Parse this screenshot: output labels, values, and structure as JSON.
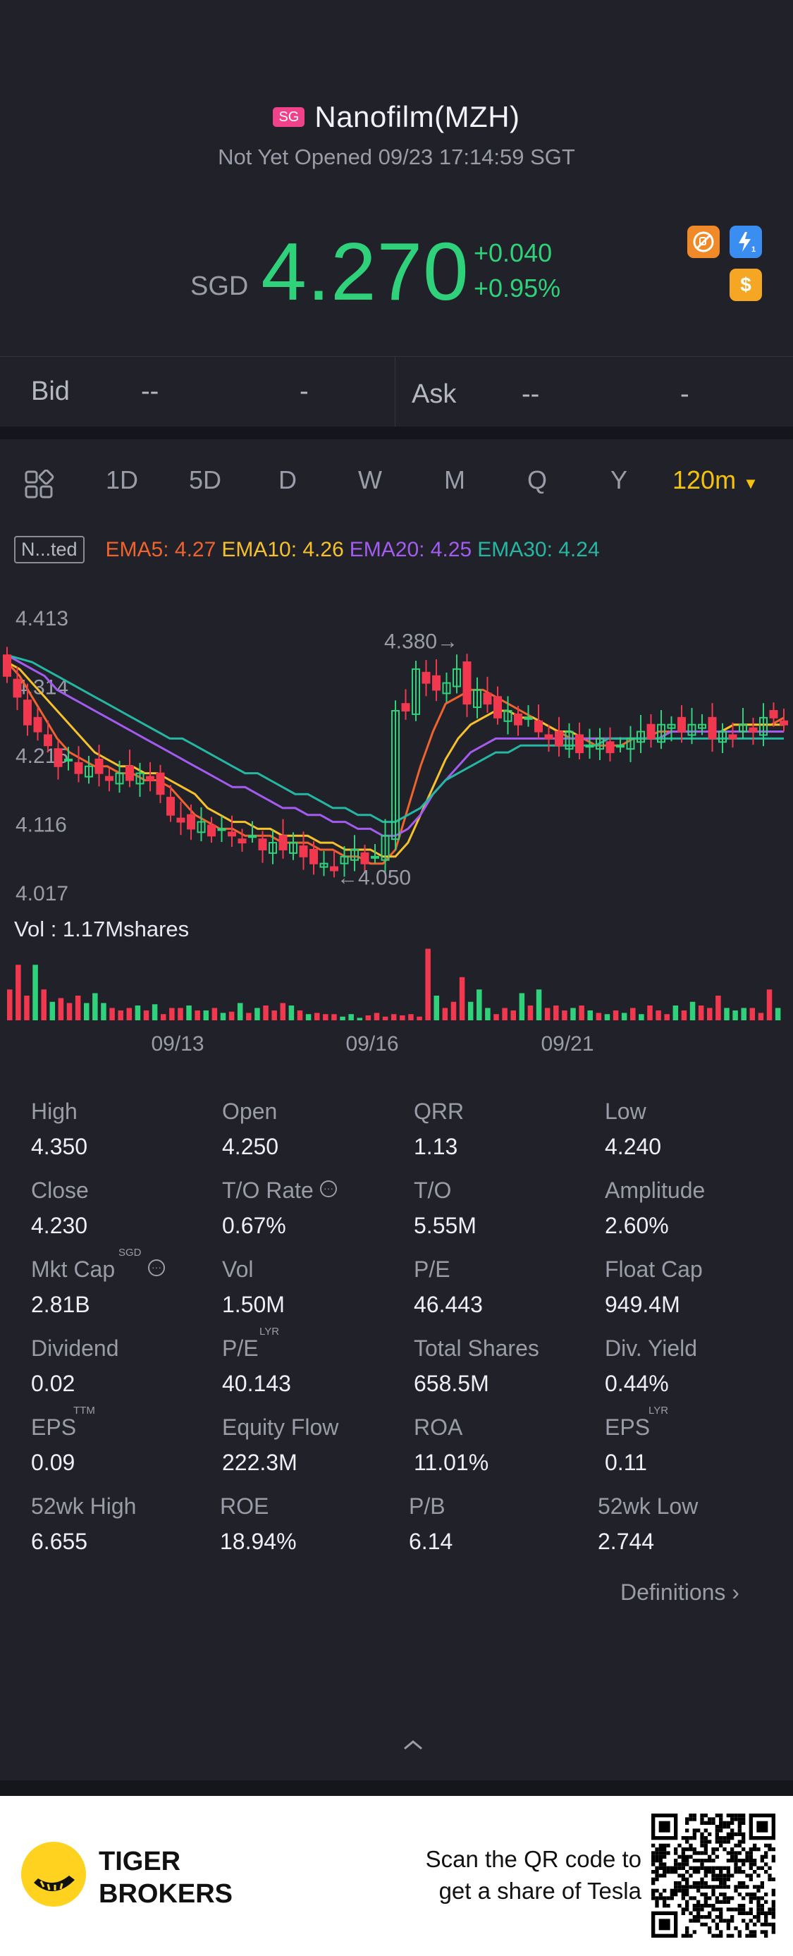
{
  "header": {
    "market_badge": "SG",
    "stock_name": "Nanofilm(MZH)",
    "status": "Not Yet Opened 09/23 17:14:59 SGT",
    "currency": "SGD",
    "price": "4.270",
    "change_abs": "+0.040",
    "change_pct": "+0.95%",
    "icons": [
      "no-short-icon",
      "flash-icon",
      "dollar-icon"
    ]
  },
  "bidask": {
    "bid_label": "Bid",
    "bid_price": "--",
    "bid_size": "-",
    "ask_label": "Ask",
    "ask_price": "--",
    "ask_size": "-"
  },
  "tabs": [
    "1D",
    "5D",
    "D",
    "W",
    "M",
    "Q",
    "Y"
  ],
  "selected_tab": "120m",
  "indicators": {
    "mode_label": "N...ted",
    "ema5": "EMA5: 4.27",
    "ema10": "EMA10: 4.26",
    "ema20": "EMA20: 4.25",
    "ema30": "EMA30: 4.24",
    "colors": {
      "ema5": "#f0632e",
      "ema10": "#f6c12b",
      "ema20": "#a45cf0",
      "ema30": "#26b7a4",
      "up": "#2fd27a",
      "down": "#f2384e"
    }
  },
  "chart_data": {
    "type": "candlestick",
    "y_ticks": [
      "4.413",
      "4.314",
      "4.215",
      "4.116",
      "4.017"
    ],
    "ylim": [
      4.017,
      4.413
    ],
    "x_ticks": [
      "09/13",
      "09/16",
      "09/21"
    ],
    "max_annotation": "4.380",
    "min_annotation": "4.050",
    "close_series": [
      4.33,
      4.3,
      4.26,
      4.25,
      4.23,
      4.2,
      4.21,
      4.19,
      4.2,
      4.19,
      4.18,
      4.19,
      4.18,
      4.19,
      4.18,
      4.16,
      4.13,
      4.12,
      4.11,
      4.12,
      4.1,
      4.11,
      4.1,
      4.09,
      4.1,
      4.08,
      4.09,
      4.08,
      4.09,
      4.07,
      4.06,
      4.06,
      4.05,
      4.07,
      4.08,
      4.06,
      4.07,
      4.1,
      4.28,
      4.28,
      4.34,
      4.32,
      4.31,
      4.32,
      4.34,
      4.29,
      4.31,
      4.29,
      4.27,
      4.28,
      4.26,
      4.27,
      4.25,
      4.24,
      4.23,
      4.25,
      4.22,
      4.23,
      4.24,
      4.22,
      4.23,
      4.24,
      4.25,
      4.24,
      4.26,
      4.26,
      4.25,
      4.26,
      4.26,
      4.24,
      4.25,
      4.24,
      4.26,
      4.25,
      4.27,
      4.27,
      4.26
    ],
    "ema_series": {
      "EMA5": [
        4.35,
        4.33,
        4.3,
        4.27,
        4.24,
        4.22,
        4.21,
        4.2,
        4.2,
        4.19,
        4.19,
        4.18,
        4.18,
        4.17,
        4.15,
        4.13,
        4.12,
        4.11,
        4.11,
        4.1,
        4.1,
        4.1,
        4.09,
        4.09,
        4.09,
        4.08,
        4.08,
        4.07,
        4.07,
        4.06,
        4.06,
        4.08,
        4.14,
        4.2,
        4.25,
        4.29,
        4.3,
        4.31,
        4.31,
        4.3,
        4.29,
        4.28,
        4.27,
        4.26,
        4.25,
        4.24,
        4.24,
        4.23,
        4.23,
        4.23,
        4.24,
        4.24,
        4.25,
        4.25,
        4.25,
        4.25,
        4.25,
        4.25,
        4.26,
        4.26,
        4.26,
        4.26,
        4.27
      ],
      "EMA10": [
        4.35,
        4.34,
        4.32,
        4.3,
        4.28,
        4.26,
        4.24,
        4.22,
        4.21,
        4.2,
        4.2,
        4.19,
        4.19,
        4.18,
        4.17,
        4.16,
        4.14,
        4.13,
        4.12,
        4.12,
        4.11,
        4.11,
        4.1,
        4.1,
        4.1,
        4.09,
        4.09,
        4.08,
        4.08,
        4.08,
        4.07,
        4.07,
        4.09,
        4.13,
        4.17,
        4.21,
        4.24,
        4.26,
        4.27,
        4.28,
        4.28,
        4.27,
        4.27,
        4.26,
        4.25,
        4.25,
        4.24,
        4.24,
        4.24,
        4.24,
        4.24,
        4.24,
        4.24,
        4.25,
        4.25,
        4.25,
        4.25,
        4.25,
        4.26,
        4.26,
        4.26,
        4.26,
        4.26
      ],
      "EMA20": [
        4.36,
        4.35,
        4.34,
        4.33,
        4.31,
        4.3,
        4.29,
        4.28,
        4.27,
        4.26,
        4.25,
        4.24,
        4.23,
        4.22,
        4.21,
        4.2,
        4.19,
        4.18,
        4.17,
        4.17,
        4.16,
        4.15,
        4.14,
        4.14,
        4.13,
        4.13,
        4.12,
        4.12,
        4.11,
        4.11,
        4.1,
        4.1,
        4.11,
        4.13,
        4.16,
        4.18,
        4.2,
        4.22,
        4.23,
        4.24,
        4.24,
        4.24,
        4.24,
        4.24,
        4.24,
        4.24,
        4.24,
        4.24,
        4.24,
        4.24,
        4.24,
        4.24,
        4.24,
        4.25,
        4.25,
        4.25,
        4.25,
        4.25,
        4.25,
        4.25,
        4.25,
        4.25,
        4.25
      ],
      "EMA30": [
        4.36,
        4.355,
        4.35,
        4.34,
        4.33,
        4.32,
        4.31,
        4.3,
        4.29,
        4.28,
        4.27,
        4.26,
        4.25,
        4.24,
        4.24,
        4.23,
        4.22,
        4.21,
        4.2,
        4.19,
        4.19,
        4.18,
        4.17,
        4.16,
        4.16,
        4.15,
        4.14,
        4.14,
        4.13,
        4.13,
        4.12,
        4.12,
        4.13,
        4.14,
        4.16,
        4.18,
        4.19,
        4.2,
        4.21,
        4.22,
        4.22,
        4.23,
        4.23,
        4.23,
        4.23,
        4.23,
        4.23,
        4.23,
        4.24,
        4.24,
        4.24,
        4.24,
        4.24,
        4.24,
        4.24,
        4.24,
        4.24,
        4.24,
        4.24,
        4.24,
        4.24,
        4.24,
        4.24
      ]
    },
    "volume_label": "Vol  : 1.17Mshares",
    "volume_series": [
      0.25,
      0.45,
      0.2,
      0.45,
      0.25,
      0.15,
      0.18,
      0.14,
      0.2,
      0.14,
      0.22,
      0.14,
      0.1,
      0.08,
      0.1,
      0.12,
      0.08,
      0.13,
      0.05,
      0.1,
      0.1,
      0.12,
      0.08,
      0.08,
      0.1,
      0.06,
      0.07,
      0.14,
      0.06,
      0.1,
      0.12,
      0.08,
      0.14,
      0.12,
      0.08,
      0.05,
      0.06,
      0.05,
      0.05,
      0.03,
      0.05,
      0.02,
      0.04,
      0.06,
      0.03,
      0.05,
      0.04,
      0.05,
      0.03,
      0.58,
      0.2,
      0.1,
      0.15,
      0.35,
      0.15,
      0.25,
      0.1,
      0.05,
      0.1,
      0.08,
      0.22,
      0.12,
      0.25,
      0.1,
      0.12,
      0.08,
      0.1,
      0.12,
      0.08,
      0.06,
      0.05,
      0.08,
      0.06,
      0.1,
      0.05,
      0.12,
      0.08,
      0.05,
      0.12,
      0.08,
      0.15,
      0.12,
      0.1,
      0.2,
      0.1,
      0.08,
      0.1,
      0.1,
      0.06,
      0.25,
      0.1
    ]
  },
  "stats": [
    [
      {
        "label": "High",
        "value": "4.350"
      },
      {
        "label": "Open",
        "value": "4.250"
      },
      {
        "label": "QRR",
        "value": "1.13"
      },
      {
        "label": "Low",
        "value": "4.240"
      }
    ],
    [
      {
        "label": "Close",
        "value": "4.230"
      },
      {
        "label": "T/O Rate",
        "value": "0.67%"
      },
      {
        "label": "T/O",
        "value": "5.55M"
      },
      {
        "label": "Amplitude",
        "value": "2.60%"
      }
    ],
    [
      {
        "label": "Mkt Cap",
        "value": "2.81B"
      },
      {
        "label": "Vol",
        "value": "1.50M"
      },
      {
        "label": "P/E",
        "value": "46.443"
      },
      {
        "label": "Float Cap",
        "value": "949.4M"
      }
    ],
    [
      {
        "label": "Dividend",
        "value": "0.02"
      },
      {
        "label": "P/E",
        "value": "40.143"
      },
      {
        "label": "Total Shares",
        "value": "658.5M"
      },
      {
        "label": "Div. Yield",
        "value": "0.44%"
      }
    ],
    [
      {
        "label": "EPS",
        "value": "0.09"
      },
      {
        "label": "Equity Flow",
        "value": "222.3M"
      },
      {
        "label": "ROA",
        "value": "11.01%"
      },
      {
        "label": "EPS",
        "value": "0.11"
      }
    ],
    [
      {
        "label": "52wk High",
        "value": "6.655"
      },
      {
        "label": "ROE",
        "value": "18.94%"
      },
      {
        "label": "P/B",
        "value": "6.14"
      },
      {
        "label": "52wk Low",
        "value": "2.744"
      }
    ]
  ],
  "stat_superscripts": {
    "mkt_cap": "SGD",
    "pe_lyr": "LYR",
    "eps_ttm": "TTM",
    "eps_lyr": "LYR"
  },
  "definitions_label": "Definitions",
  "footer": {
    "brand_line1": "TIGER",
    "brand_line2": "BROKERS",
    "scan_line1": "Scan the QR code to",
    "scan_line2": "get a share of Tesla"
  }
}
